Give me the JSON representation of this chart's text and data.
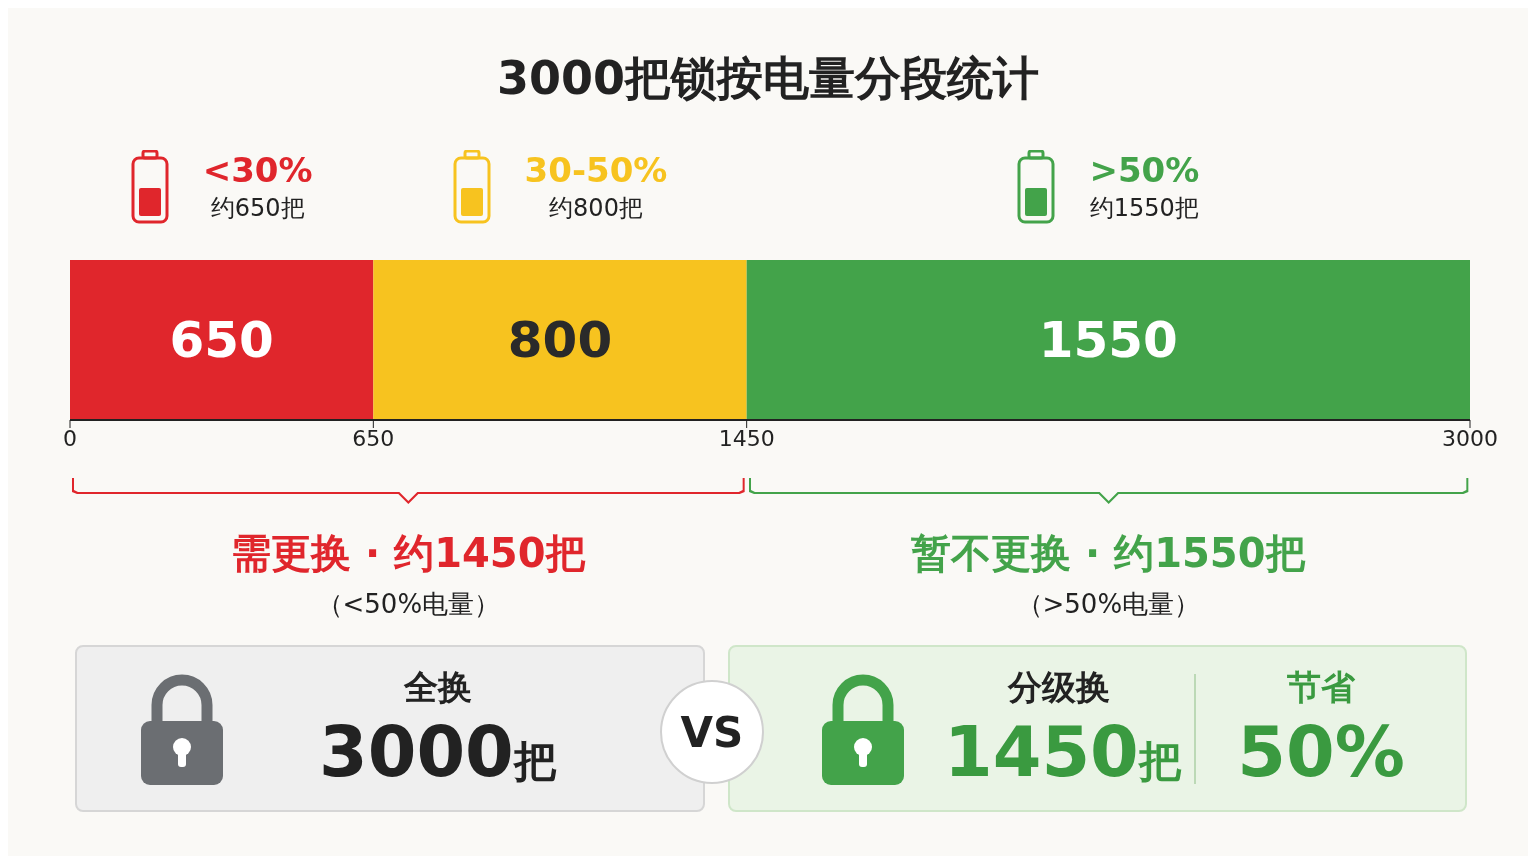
{
  "chart_data": {
    "type": "bar",
    "orientation": "horizontal",
    "stacked": true,
    "title": "3000把锁按电量分段统计",
    "categories": [
      null
    ],
    "series": [
      {
        "name": "<30%",
        "color": "#e0262c",
        "values": [
          650
        ]
      },
      {
        "name": "30-50%",
        "color": "#f7c31f",
        "values": [
          800
        ]
      },
      {
        "name": ">50%",
        "color": "#43a34a",
        "values": [
          1550
        ]
      }
    ],
    "xlim": [
      0,
      3000
    ],
    "xticks": [
      0,
      650,
      1450,
      3000
    ],
    "data_labels": true,
    "legend": "top",
    "annotations": [
      "约650把",
      "约800把",
      "约1550把",
      "需更换 · 约1450把",
      "（<50%电量）",
      "暂不更换 · 约1550把",
      "（>50%电量）",
      "全换",
      "3000把",
      "VS",
      "分级换",
      "1450把",
      "节省",
      "50%"
    ]
  }
}
